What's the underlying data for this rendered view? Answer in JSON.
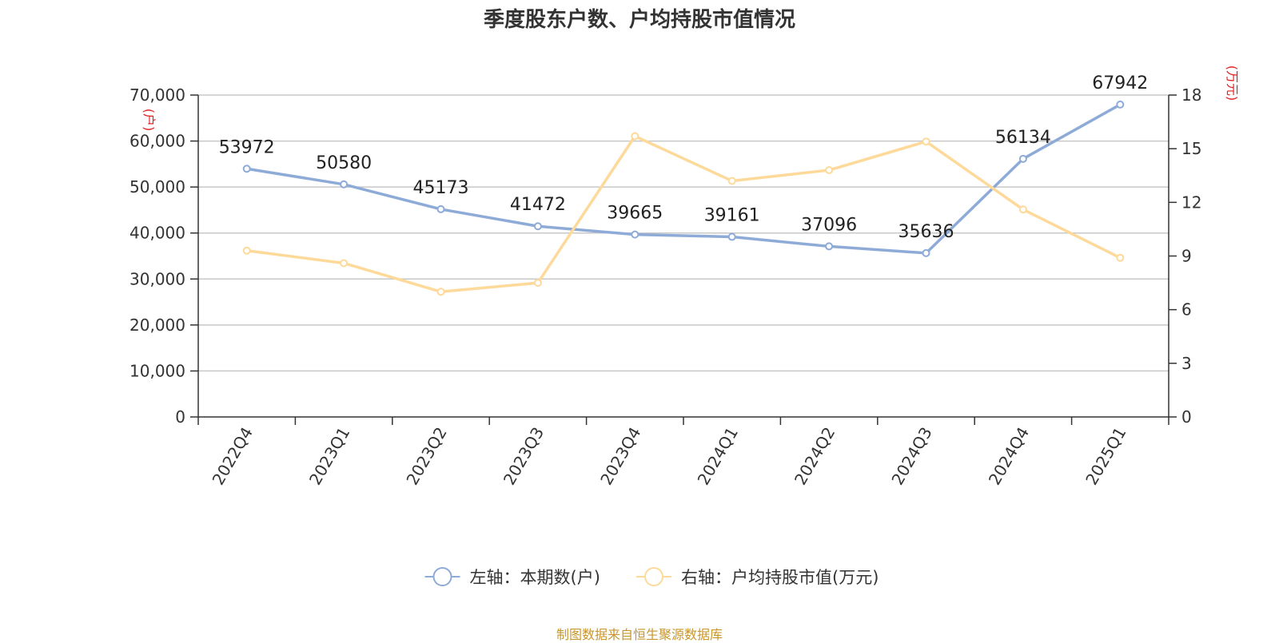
{
  "chart_data": {
    "type": "line",
    "title": "季度股东户数、户均持股市值情况",
    "categories": [
      "2022Q4",
      "2023Q1",
      "2023Q2",
      "2023Q3",
      "2023Q4",
      "2024Q1",
      "2024Q2",
      "2024Q3",
      "2024Q4",
      "2025Q1"
    ],
    "series": [
      {
        "name": "左轴：本期数(户)",
        "axis": "left",
        "color": "#8eabd8",
        "values": [
          53972,
          50580,
          45173,
          41472,
          39665,
          39161,
          37096,
          35636,
          56134,
          67942
        ],
        "data_labels": [
          "53972",
          "50580",
          "45173",
          "41472",
          "39665",
          "39161",
          "37096",
          "35636",
          "56134",
          "67942"
        ]
      },
      {
        "name": "右轴：户均持股市值(万元)",
        "axis": "right",
        "color": "#fdd99a",
        "values": [
          9.3,
          8.6,
          7.0,
          7.5,
          15.7,
          13.2,
          13.8,
          15.4,
          11.6,
          8.9
        ]
      }
    ],
    "left_axis": {
      "unit": "(户)",
      "ylim": [
        0,
        70000
      ],
      "ticks": [
        0,
        10000,
        20000,
        30000,
        40000,
        50000,
        60000,
        70000
      ],
      "tick_labels": [
        "0",
        "10,000",
        "20,000",
        "30,000",
        "40,000",
        "50,000",
        "60,000",
        "70,000"
      ]
    },
    "right_axis": {
      "unit": "(万元)",
      "ylim": [
        0,
        18
      ],
      "ticks": [
        0,
        3,
        6,
        9,
        12,
        15,
        18
      ],
      "tick_labels": [
        "0",
        "3",
        "6",
        "9",
        "12",
        "15",
        "18"
      ]
    },
    "grid": true,
    "legend_position": "bottom"
  },
  "source": "制图数据来自恒生聚源数据库"
}
